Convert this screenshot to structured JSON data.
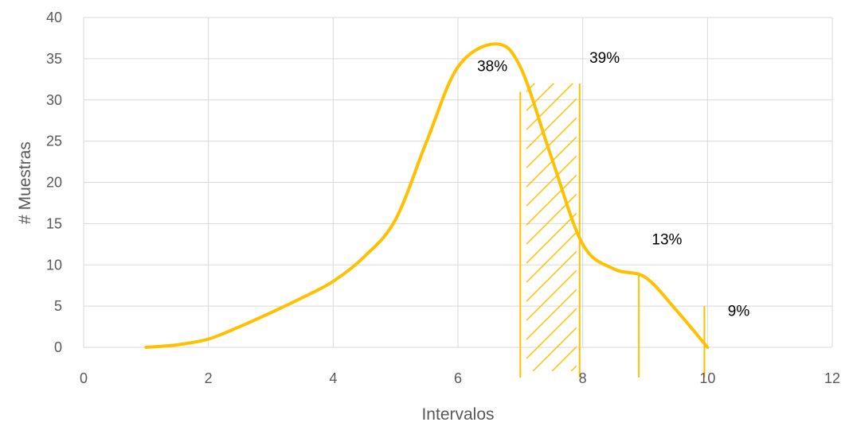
{
  "chart_data": {
    "type": "line",
    "title": "",
    "xlabel": "Intervalos",
    "ylabel": "# Muestras",
    "xlim": [
      0,
      12
    ],
    "ylim": [
      0,
      40
    ],
    "x_ticks": [
      0,
      2,
      4,
      6,
      8,
      10,
      12
    ],
    "y_ticks": [
      0,
      5,
      10,
      15,
      20,
      25,
      30,
      35,
      40
    ],
    "grid": true,
    "legend": "none",
    "colors": {
      "series": "#FFC000",
      "grid": "#D9D9D9",
      "text": "#595959"
    },
    "series": [
      {
        "x": [
          1,
          1.5,
          2,
          2.5,
          3,
          3.5,
          4,
          4.5,
          5,
          5.5,
          6,
          6.6,
          7,
          7.5,
          8,
          8.5,
          9,
          9.5,
          10
        ],
        "y": [
          0,
          0.3,
          1,
          2.5,
          4.2,
          6,
          8,
          11,
          15.5,
          25,
          34,
          36.8,
          34,
          23,
          12.5,
          9.5,
          8.5,
          4.5,
          0
        ]
      }
    ],
    "markers": [
      {
        "x": 7,
        "y_top": 31
      },
      {
        "x": 7.95,
        "y_top": 32
      },
      {
        "x": 8.9,
        "y_top": 9
      },
      {
        "x": 9.95,
        "y_top": 5
      }
    ],
    "hatched_region": {
      "x_start": 7.1,
      "x_end": 7.9,
      "y_top": 32
    },
    "annotations": [
      {
        "text": "38%",
        "x": 6.55,
        "y": 33.5
      },
      {
        "text": "39%",
        "x": 8.35,
        "y": 34.5
      },
      {
        "text": "13%",
        "x": 9.35,
        "y": 12.5
      },
      {
        "text": "9%",
        "x": 10.5,
        "y": 3.8
      }
    ]
  }
}
